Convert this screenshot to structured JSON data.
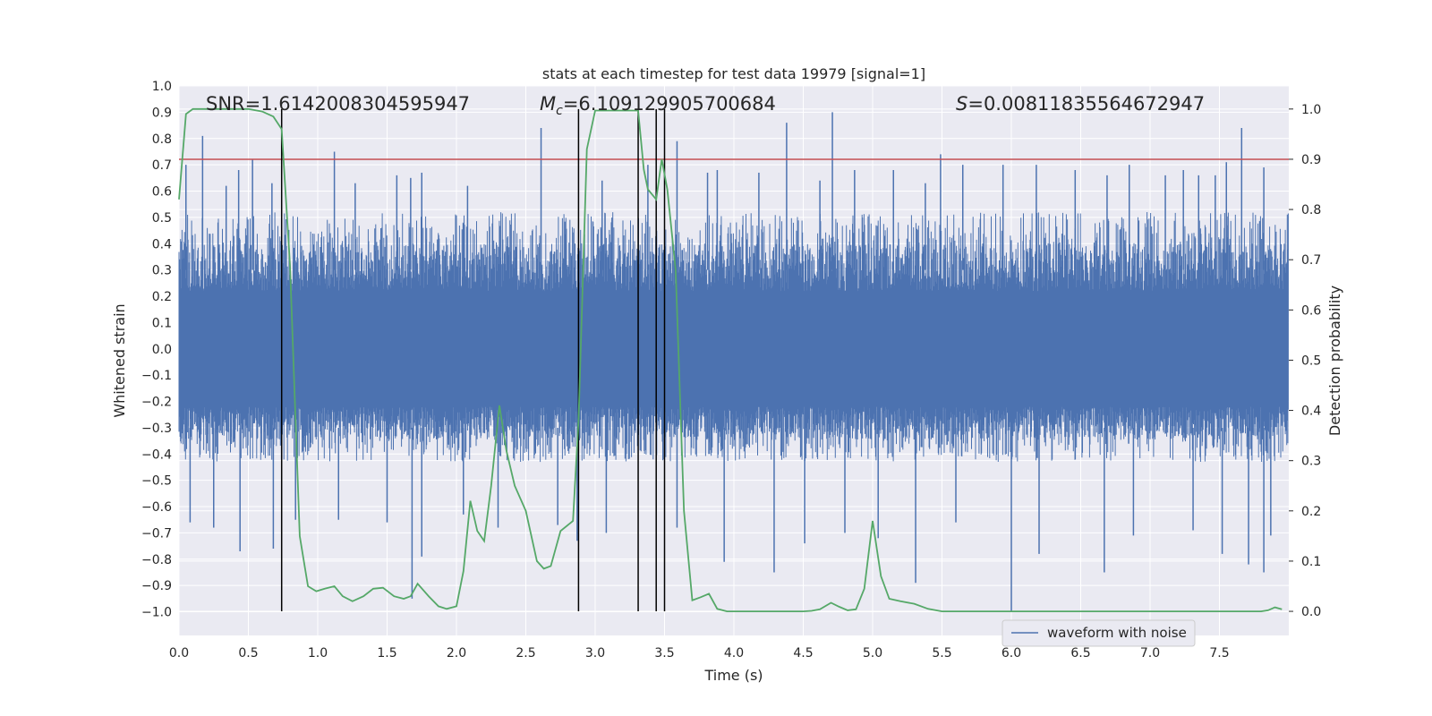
{
  "chart_data": {
    "type": "line",
    "title": "stats at each timestep for test data 19979 [signal=1]",
    "xlabel": "Time (s)",
    "ylabel": "Whitened strain",
    "y2label": "Detection probability",
    "xlim": [
      0.0,
      8.0
    ],
    "ylim": [
      -1.09,
      1.0
    ],
    "y2lim": [
      -0.048,
      1.046
    ],
    "x_ticks": [
      "0.0",
      "0.5",
      "1.0",
      "1.5",
      "2.0",
      "2.5",
      "3.0",
      "3.5",
      "4.0",
      "4.5",
      "5.0",
      "5.5",
      "6.0",
      "6.5",
      "7.0",
      "7.5"
    ],
    "y_ticks": [
      "−1.0",
      "−0.9",
      "−0.8",
      "−0.7",
      "−0.6",
      "−0.5",
      "−0.4",
      "−0.3",
      "−0.2",
      "−0.1",
      "0.0",
      "0.1",
      "0.2",
      "0.3",
      "0.4",
      "0.5",
      "0.6",
      "0.7",
      "0.8",
      "0.9",
      "1.0"
    ],
    "y2_ticks": [
      "0.0",
      "0.1",
      "0.2",
      "0.3",
      "0.4",
      "0.5",
      "0.6",
      "0.7",
      "0.8",
      "0.9",
      "1.0"
    ],
    "grid": true,
    "legend_position": "lower right",
    "annotations": {
      "snr_text": "SNR=1.6142008304595947",
      "mc_symbol": "M",
      "mc_subscript": "c",
      "mc_value": "=6.109129905700684",
      "s_symbol": "S",
      "s_value": "=0.00811835564672947"
    },
    "threshold_line": {
      "axis": "right",
      "value": 0.9,
      "color": "#c44e52"
    },
    "vertical_lines": [
      0.74,
      2.88,
      3.31,
      3.44,
      3.5
    ],
    "series": [
      {
        "name": "waveform with noise",
        "axis": "left",
        "color": "#4c72b0",
        "note_stats": {
          "core_low": -0.43,
          "core_high": 0.52
        },
        "spikes_up": [
          [
            0.05,
            0.7
          ],
          [
            0.17,
            0.81
          ],
          [
            0.34,
            0.62
          ],
          [
            0.43,
            0.68
          ],
          [
            0.53,
            0.72
          ],
          [
            0.67,
            0.63
          ],
          [
            1.12,
            0.75
          ],
          [
            1.27,
            0.63
          ],
          [
            1.57,
            0.66
          ],
          [
            1.67,
            0.65
          ],
          [
            1.75,
            0.67
          ],
          [
            2.08,
            0.62
          ],
          [
            2.61,
            0.84
          ],
          [
            3.05,
            0.64
          ],
          [
            3.38,
            0.7
          ],
          [
            3.59,
            0.79
          ],
          [
            3.81,
            0.67
          ],
          [
            3.88,
            0.68
          ],
          [
            4.18,
            0.67
          ],
          [
            4.38,
            0.86
          ],
          [
            4.62,
            0.64
          ],
          [
            4.71,
            0.9
          ],
          [
            4.87,
            0.68
          ],
          [
            5.15,
            0.68
          ],
          [
            5.38,
            0.63
          ],
          [
            5.49,
            0.74
          ],
          [
            5.65,
            0.7
          ],
          [
            5.94,
            0.7
          ],
          [
            6.18,
            0.7
          ],
          [
            6.46,
            0.68
          ],
          [
            6.69,
            0.66
          ],
          [
            6.85,
            0.7
          ],
          [
            7.11,
            0.66
          ],
          [
            7.24,
            0.68
          ],
          [
            7.35,
            0.66
          ],
          [
            7.47,
            0.66
          ],
          [
            7.55,
            0.71
          ],
          [
            7.66,
            0.84
          ],
          [
            7.82,
            0.69
          ]
        ],
        "spikes_down": [
          [
            0.08,
            -0.66
          ],
          [
            0.25,
            -0.68
          ],
          [
            0.44,
            -0.77
          ],
          [
            0.68,
            -0.76
          ],
          [
            0.84,
            -0.65
          ],
          [
            1.15,
            -0.65
          ],
          [
            1.5,
            -0.66
          ],
          [
            1.68,
            -0.95
          ],
          [
            1.75,
            -0.79
          ],
          [
            2.05,
            -0.63
          ],
          [
            2.3,
            -0.68
          ],
          [
            2.73,
            -0.67
          ],
          [
            2.87,
            -0.73
          ],
          [
            3.08,
            -0.7
          ],
          [
            3.59,
            -0.68
          ],
          [
            3.93,
            -0.81
          ],
          [
            4.29,
            -0.85
          ],
          [
            4.51,
            -0.74
          ],
          [
            4.8,
            -0.7
          ],
          [
            5.04,
            -0.72
          ],
          [
            5.31,
            -0.89
          ],
          [
            5.6,
            -0.66
          ],
          [
            6.0,
            -1.0
          ],
          [
            6.2,
            -0.78
          ],
          [
            6.67,
            -0.85
          ],
          [
            6.88,
            -0.71
          ],
          [
            7.31,
            -0.69
          ],
          [
            7.52,
            -0.78
          ],
          [
            7.71,
            -0.82
          ],
          [
            7.82,
            -0.85
          ],
          [
            7.87,
            -0.71
          ]
        ]
      },
      {
        "name": "detection probability",
        "axis": "right",
        "color": "#55a868",
        "x": [
          0.0,
          0.05,
          0.1,
          0.2,
          0.3,
          0.4,
          0.5,
          0.6,
          0.68,
          0.74,
          0.8,
          0.87,
          0.93,
          0.99,
          1.05,
          1.12,
          1.18,
          1.25,
          1.33,
          1.4,
          1.47,
          1.55,
          1.62,
          1.67,
          1.72,
          1.8,
          1.87,
          1.93,
          2.0,
          2.05,
          2.1,
          2.15,
          2.2,
          2.25,
          2.31,
          2.36,
          2.42,
          2.5,
          2.58,
          2.63,
          2.68,
          2.75,
          2.84,
          2.88,
          2.94,
          3.0,
          3.1,
          3.2,
          3.25,
          3.31,
          3.35,
          3.38,
          3.44,
          3.48,
          3.52,
          3.58,
          3.64,
          3.7,
          3.76,
          3.82,
          3.88,
          3.95,
          4.0,
          4.1,
          4.2,
          4.3,
          4.4,
          4.5,
          4.56,
          4.62,
          4.7,
          4.76,
          4.82,
          4.88,
          4.94,
          5.0,
          5.06,
          5.12,
          5.2,
          5.3,
          5.4,
          5.5,
          5.6,
          5.7,
          5.8,
          6.0,
          6.2,
          6.4,
          6.6,
          6.8,
          7.0,
          7.2,
          7.4,
          7.6,
          7.7,
          7.8,
          7.85,
          7.9,
          7.95
        ],
        "y": [
          0.82,
          0.99,
          1.0,
          1.0,
          1.0,
          1.0,
          1.0,
          0.995,
          0.985,
          0.96,
          0.69,
          0.15,
          0.05,
          0.04,
          0.045,
          0.05,
          0.03,
          0.02,
          0.03,
          0.045,
          0.047,
          0.03,
          0.025,
          0.03,
          0.055,
          0.03,
          0.01,
          0.005,
          0.01,
          0.08,
          0.22,
          0.16,
          0.14,
          0.25,
          0.41,
          0.32,
          0.25,
          0.2,
          0.1,
          0.085,
          0.09,
          0.16,
          0.18,
          0.38,
          0.92,
          0.997,
          0.997,
          0.997,
          0.997,
          0.997,
          0.88,
          0.84,
          0.82,
          0.9,
          0.84,
          0.68,
          0.2,
          0.022,
          0.028,
          0.035,
          0.005,
          0.0,
          0.0,
          0.0,
          0.0,
          0.0,
          0.0,
          0.0,
          0.001,
          0.004,
          0.017,
          0.009,
          0.002,
          0.004,
          0.045,
          0.18,
          0.07,
          0.025,
          0.02,
          0.015,
          0.005,
          0.0,
          0.0,
          0.0,
          0.0,
          0.0,
          0.0,
          0.0,
          0.0,
          0.0,
          0.0,
          0.0,
          0.0,
          0.0,
          0.0,
          0.0,
          0.002,
          0.008,
          0.004
        ]
      }
    ]
  }
}
